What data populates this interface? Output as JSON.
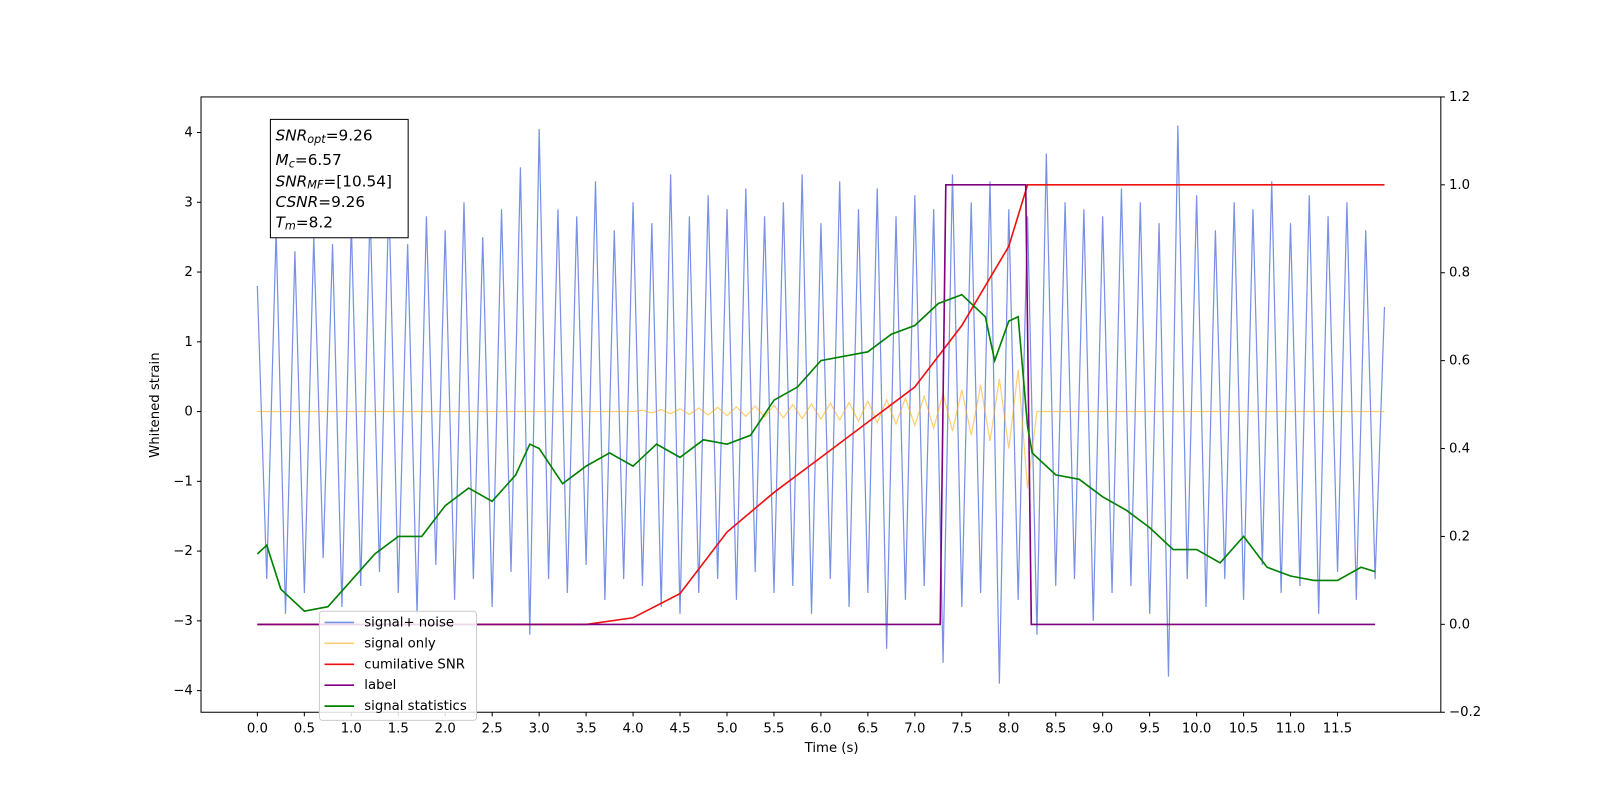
{
  "chart_data": {
    "type": "line",
    "xlabel": "Time (s)",
    "ylabel": "Whitened strain",
    "xlim": [
      -0.6,
      12.6
    ],
    "ylim": [
      -4.31,
      4.51
    ],
    "y2lim": [
      -0.2,
      1.2
    ],
    "xticks": [
      {
        "value": 0,
        "label": "0.0"
      },
      {
        "value": 0.5,
        "label": "0.5"
      },
      {
        "value": 1,
        "label": "1.0"
      },
      {
        "value": 1.5,
        "label": "1.5"
      },
      {
        "value": 2,
        "label": "2.0"
      },
      {
        "value": 2.5,
        "label": "2.5"
      },
      {
        "value": 3,
        "label": "3.0"
      },
      {
        "value": 3.5,
        "label": "3.5"
      },
      {
        "value": 4,
        "label": "4.0"
      },
      {
        "value": 4.5,
        "label": "4.5"
      },
      {
        "value": 5,
        "label": "5.0"
      },
      {
        "value": 5.5,
        "label": "5.5"
      },
      {
        "value": 6,
        "label": "6.0"
      },
      {
        "value": 6.5,
        "label": "6.5"
      },
      {
        "value": 7,
        "label": "7.0"
      },
      {
        "value": 7.5,
        "label": "7.5"
      },
      {
        "value": 8,
        "label": "8.0"
      },
      {
        "value": 8.5,
        "label": "8.5"
      },
      {
        "value": 9,
        "label": "9.0"
      },
      {
        "value": 9.5,
        "label": "9.5"
      },
      {
        "value": 10,
        "label": "10.0"
      },
      {
        "value": 10.5,
        "label": "10.5"
      },
      {
        "value": 11,
        "label": "11.0"
      },
      {
        "value": 11.5,
        "label": "11.5"
      }
    ],
    "yticks": [
      {
        "value": -4,
        "label": "−4"
      },
      {
        "value": -3,
        "label": "−3"
      },
      {
        "value": -2,
        "label": "−2"
      },
      {
        "value": -1,
        "label": "−1"
      },
      0,
      1,
      2,
      3,
      4
    ],
    "y2ticks": [
      {
        "value": -0.2,
        "label": "−0.2"
      },
      {
        "value": 0,
        "label": "0.0"
      },
      0.2,
      0.4,
      0.6,
      0.8,
      {
        "value": 1,
        "label": "1.0"
      },
      1.2
    ],
    "annotations": [
      {
        "main": "SNR",
        "sub": "opt",
        "text": "=9.26"
      },
      {
        "main": "M",
        "sub": "c",
        "text": "=6.57"
      },
      {
        "main": "SNR",
        "sub": "MF",
        "text": "=[10.54]"
      },
      {
        "main": "CSNR",
        "sub": "",
        "text": "=9.26"
      },
      {
        "main": "T",
        "sub": "m",
        "text": "=8.2"
      }
    ],
    "x": [
      0,
      0.1,
      0.2,
      0.3,
      0.4,
      0.5,
      0.6,
      0.7,
      0.8,
      0.9,
      1,
      1.1,
      1.2,
      1.3,
      1.4,
      1.5,
      1.6,
      1.7,
      1.8,
      1.9,
      2,
      2.1,
      2.2,
      2.3,
      2.4,
      2.5,
      2.6,
      2.7,
      2.8,
      2.9,
      3,
      3.1,
      3.2,
      3.3,
      3.4,
      3.5,
      3.6,
      3.7,
      3.8,
      3.9,
      4,
      4.1,
      4.2,
      4.3,
      4.4,
      4.5,
      4.6,
      4.7,
      4.8,
      4.9,
      5,
      5.1,
      5.2,
      5.3,
      5.4,
      5.5,
      5.6,
      5.7,
      5.8,
      5.9,
      6,
      6.1,
      6.2,
      6.3,
      6.4,
      6.5,
      6.6,
      6.7,
      6.8,
      6.9,
      7,
      7.1,
      7.2,
      7.3,
      7.4,
      7.5,
      7.6,
      7.7,
      7.8,
      7.9,
      8,
      8.1,
      8.2,
      8.3,
      8.4,
      8.5,
      8.6,
      8.7,
      8.8,
      8.9,
      9,
      9.1,
      9.2,
      9.3,
      9.4,
      9.5,
      9.6,
      9.7,
      9.8,
      9.9,
      10,
      10.1,
      10.2,
      10.3,
      10.4,
      10.5,
      10.6,
      10.7,
      10.8,
      10.9,
      11,
      11.1,
      11.2,
      11.3,
      11.4,
      11.5,
      11.6,
      11.7,
      11.8,
      11.9,
      12
    ],
    "series": [
      {
        "name": "signal+ noise",
        "color": "#7890e6",
        "values": [
          1.8,
          -2.4,
          2.6,
          -2.9,
          2.3,
          -2.6,
          2.5,
          -2.1,
          2.4,
          -2.8,
          2.7,
          -2.5,
          2.9,
          -2.3,
          3.1,
          -2.6,
          2.4,
          -2.9,
          2.8,
          -2.2,
          2.6,
          -2.7,
          3.0,
          -2.4,
          2.5,
          -2.8,
          2.9,
          -2.3,
          3.5,
          -3.2,
          4.05,
          -2.4,
          2.9,
          -2.6,
          2.8,
          -2.2,
          3.3,
          -2.7,
          2.6,
          -2.4,
          3.0,
          -2.5,
          2.7,
          -2.8,
          3.4,
          -2.9,
          2.8,
          -2.6,
          3.1,
          -2.4,
          2.9,
          -2.7,
          3.2,
          -2.3,
          2.8,
          -2.6,
          3.0,
          -2.5,
          3.4,
          -2.9,
          2.7,
          -2.4,
          3.3,
          -2.8,
          2.9,
          -2.6,
          3.2,
          -3.4,
          2.8,
          -2.7,
          3.1,
          -2.5,
          2.9,
          -3.6,
          3.4,
          -2.8,
          3.0,
          -2.6,
          3.3,
          -3.9,
          2.9,
          -2.7,
          2.8,
          -3.2,
          3.7,
          -2.5,
          3.0,
          -2.4,
          2.9,
          -3.0,
          2.8,
          -2.6,
          3.2,
          -2.5,
          3.0,
          -2.9,
          2.7,
          -3.8,
          4.1,
          -2.4,
          3.1,
          -2.8,
          2.6,
          -2.4,
          3.0,
          -2.7,
          2.9,
          -2.2,
          3.3,
          -2.6,
          2.7,
          -2.5,
          3.1,
          -2.9,
          2.8,
          -2.3,
          3.0,
          -2.7,
          2.6,
          -2.4,
          1.5
        ]
      },
      {
        "name": "signal only",
        "color": "#ffa500",
        "values": [
          0,
          0,
          0,
          0,
          0,
          0,
          0,
          0,
          0,
          0,
          0,
          0,
          0,
          0,
          0,
          0,
          0,
          0,
          0,
          0,
          0,
          0,
          0,
          0,
          0,
          0,
          0,
          0,
          0,
          0,
          0,
          0,
          0,
          0,
          0,
          0,
          0,
          0,
          0,
          0,
          0,
          0.02,
          -0.02,
          0.03,
          -0.03,
          0.04,
          -0.04,
          0.05,
          -0.05,
          0.06,
          -0.06,
          0.07,
          -0.07,
          0.08,
          -0.08,
          0.09,
          -0.09,
          0.1,
          -0.1,
          0.11,
          -0.11,
          0.12,
          -0.12,
          0.13,
          -0.14,
          0.15,
          -0.16,
          0.17,
          -0.18,
          0.19,
          -0.2,
          0.22,
          -0.24,
          0.26,
          -0.28,
          0.31,
          -0.34,
          0.38,
          -0.42,
          0.47,
          -0.53,
          0.6,
          -1.1,
          0,
          0,
          0,
          0,
          0,
          0,
          0,
          0,
          0,
          0,
          0,
          0,
          0,
          0,
          0,
          0,
          0,
          0,
          0,
          0,
          0,
          0,
          0,
          0,
          0,
          0,
          0,
          0,
          0,
          0,
          0,
          0,
          0,
          0,
          0,
          0,
          0,
          0
        ]
      },
      {
        "name": "cumilative SNR",
        "color": "#ee1111",
        "axis": "y2",
        "x": [
          0,
          3.5,
          4,
          4.5,
          5,
          5.5,
          6,
          6.5,
          7,
          7.5,
          8,
          8.2,
          12
        ],
        "values": [
          0,
          0,
          0.015,
          0.07,
          0.21,
          0.3,
          0.38,
          0.46,
          0.54,
          0.68,
          0.86,
          1,
          1
        ]
      },
      {
        "name": "label",
        "color": "#800080",
        "axis": "y2",
        "x": [
          0,
          7.27,
          7.33,
          8.18,
          8.24,
          11.9
        ],
        "values": [
          0,
          0,
          1,
          1,
          0,
          0
        ]
      },
      {
        "name": "signal statistics",
        "color": "#008000",
        "axis": "y2",
        "x": [
          0,
          0.1,
          0.25,
          0.5,
          0.75,
          1,
          1.25,
          1.5,
          1.75,
          2,
          2.25,
          2.5,
          2.75,
          2.9,
          3,
          3.25,
          3.5,
          3.75,
          4,
          4.25,
          4.5,
          4.75,
          5,
          5.25,
          5.5,
          5.75,
          6,
          6.25,
          6.5,
          6.75,
          7,
          7.25,
          7.5,
          7.75,
          7.85,
          8,
          8.1,
          8.2,
          8.25,
          8.5,
          8.75,
          9,
          9.25,
          9.5,
          9.75,
          10,
          10.25,
          10.5,
          10.75,
          11,
          11.25,
          11.5,
          11.75,
          11.9
        ],
        "values": [
          0.16,
          0.18,
          0.08,
          0.03,
          0.04,
          0.1,
          0.16,
          0.2,
          0.2,
          0.27,
          0.31,
          0.28,
          0.34,
          0.41,
          0.4,
          0.32,
          0.36,
          0.39,
          0.36,
          0.41,
          0.38,
          0.42,
          0.41,
          0.43,
          0.51,
          0.54,
          0.6,
          0.61,
          0.62,
          0.66,
          0.68,
          0.73,
          0.75,
          0.7,
          0.6,
          0.69,
          0.7,
          0.45,
          0.39,
          0.34,
          0.33,
          0.29,
          0.26,
          0.22,
          0.17,
          0.17,
          0.14,
          0.2,
          0.13,
          0.11,
          0.1,
          0.1,
          0.13,
          0.12
        ]
      }
    ]
  }
}
